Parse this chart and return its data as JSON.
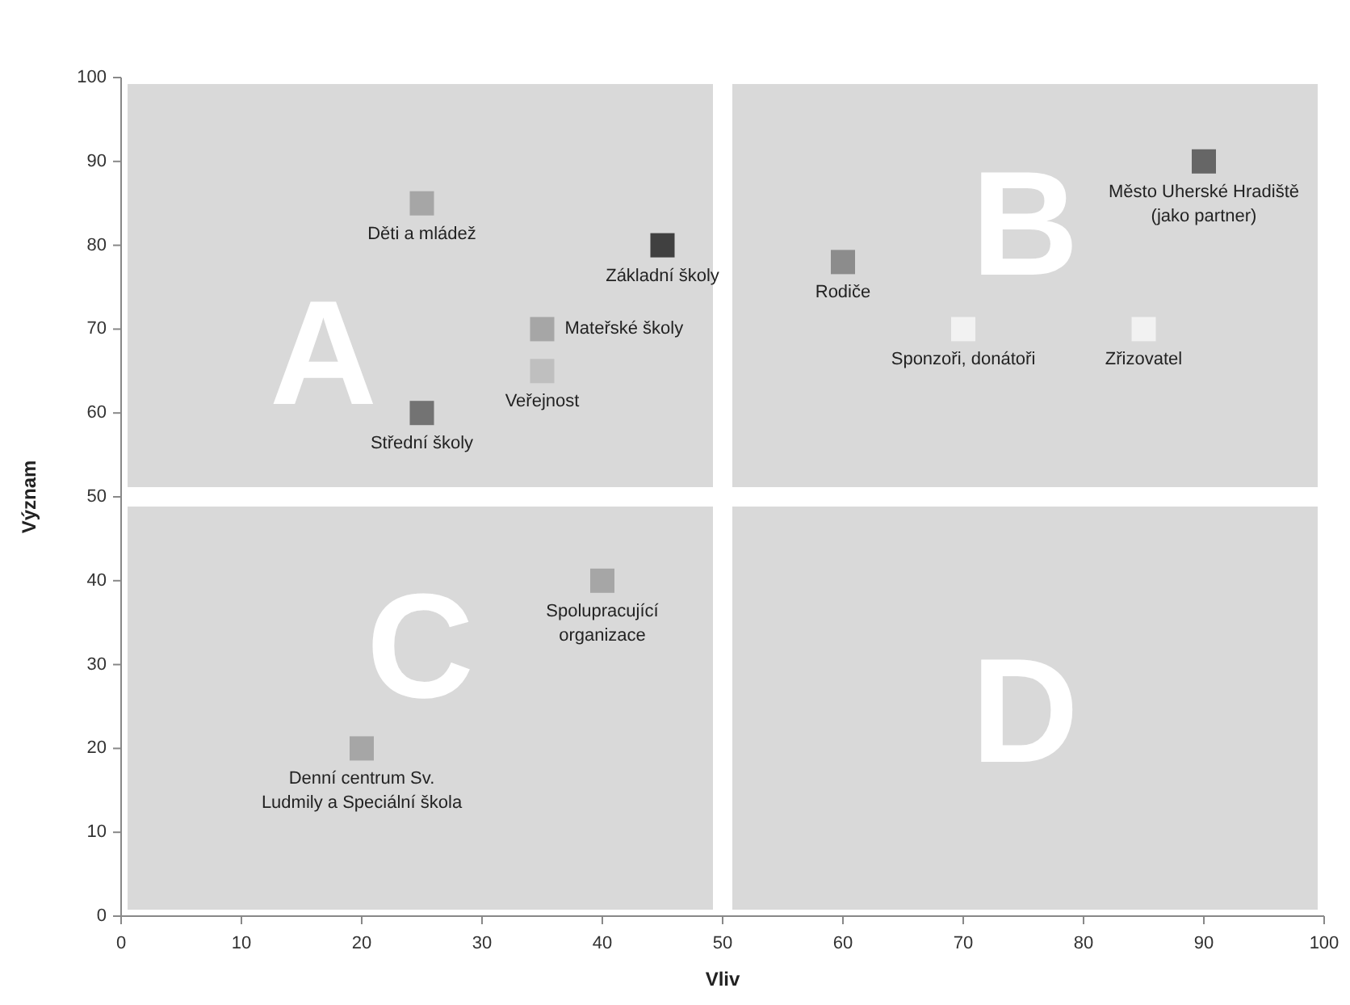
{
  "chart_data": {
    "type": "scatter",
    "xlabel": "Vliv",
    "ylabel": "Význam",
    "x": [
      25,
      45,
      35,
      35,
      25,
      60,
      70,
      85,
      90,
      40,
      20
    ],
    "values": [
      85,
      80,
      70,
      65,
      60,
      78,
      70,
      70,
      90,
      40,
      20
    ],
    "colors": [
      "#a6a6a6",
      "#404040",
      "#a6a6a6",
      "#bfbfbf",
      "#737373",
      "#8c8c8c",
      "#f2f2f2",
      "#f2f2f2",
      "#666666",
      "#a6a6a6",
      "#a6a6a6"
    ],
    "marker": "square",
    "grid": false,
    "xlim": [
      0,
      100
    ],
    "ylim": [
      0,
      100
    ],
    "xticks": [
      0,
      10,
      20,
      30,
      40,
      50,
      60,
      70,
      80,
      90,
      100
    ],
    "yticks": [
      0,
      10,
      20,
      30,
      40,
      50,
      60,
      70,
      80,
      90,
      100
    ],
    "annotations": [
      "A",
      "B",
      "C",
      "D",
      {
        "text": "Děti a mládež",
        "x": 25,
        "y": 85
      },
      {
        "text": "Základní školy",
        "x": 45,
        "y": 80
      },
      {
        "text": "Mateřské školy",
        "x": 35,
        "y": 70
      },
      {
        "text": "Veřejnost",
        "x": 35,
        "y": 65
      },
      {
        "text": "Střední školy",
        "x": 25,
        "y": 60
      },
      {
        "text": "Rodiče",
        "x": 60,
        "y": 78
      },
      {
        "text": "Sponzoři, donátoři",
        "x": 70,
        "y": 70
      },
      {
        "text": "Zřizovatel",
        "x": 85,
        "y": 70
      },
      {
        "text": "Město Uherské Hradiště\n(jako partner)",
        "x": 90,
        "y": 90
      },
      {
        "text": "Spolupracující\norganizace",
        "x": 40,
        "y": 40
      },
      {
        "text": "Denní centrum Sv.\nLudmily a Speciální škola",
        "x": 20,
        "y": 20
      }
    ]
  }
}
